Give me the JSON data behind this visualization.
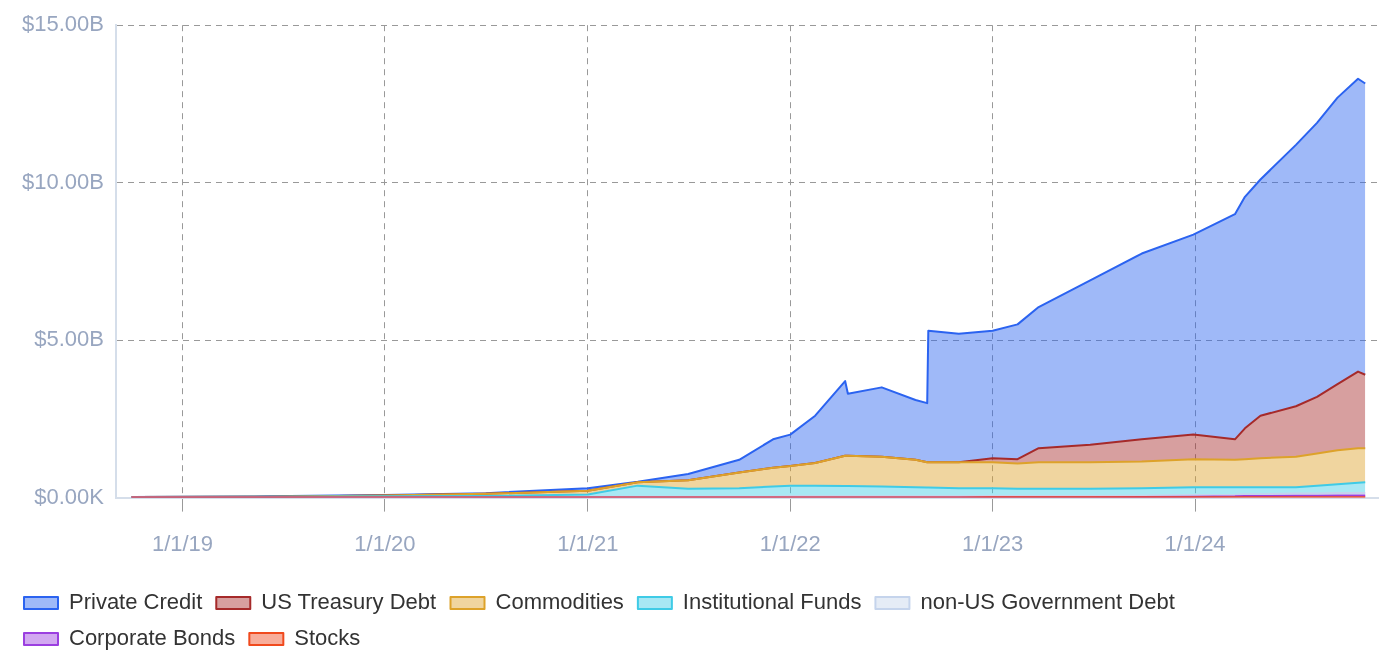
{
  "chart_data": {
    "type": "area",
    "stacked": true,
    "legend": "bottom left",
    "grid": true,
    "x": [
      "2018-10-01",
      "2019-06-01",
      "2020-01-01",
      "2020-07-01",
      "2021-01-01",
      "2021-04-01",
      "2021-07-01",
      "2021-10-01",
      "2021-12-01",
      "2022-01-01",
      "2022-02-15",
      "2022-04-10",
      "2022-04-15",
      "2022-06-15",
      "2022-08-15",
      "2022-09-05",
      "2022-09-07",
      "2022-11-01",
      "2023-01-01",
      "2023-02-15",
      "2023-03-25",
      "2023-06-26",
      "2023-09-27",
      "2023-12-29",
      "2024-03-13",
      "2024-03-31",
      "2024-04-28",
      "2024-07-01",
      "2024-08-08",
      "2024-09-14",
      "2024-10-21",
      "2024-11-03"
    ],
    "xlim": [
      "2018-09-03",
      "2024-11-26"
    ],
    "xticks": [
      {
        "value": "2019-01-01",
        "label": "1/1/19"
      },
      {
        "value": "2020-01-01",
        "label": "1/1/20"
      },
      {
        "value": "2021-01-01",
        "label": "1/1/21"
      },
      {
        "value": "2022-01-01",
        "label": "1/1/22"
      },
      {
        "value": "2023-01-01",
        "label": "1/1/23"
      },
      {
        "value": "2024-01-01",
        "label": "1/1/24"
      }
    ],
    "ylim": [
      0,
      15
    ],
    "yticks": [
      {
        "value": 0,
        "label": "$0.00K"
      },
      {
        "value": 5,
        "label": "$5.00B"
      },
      {
        "value": 10,
        "label": "$10.00B"
      },
      {
        "value": 15,
        "label": "$15.00B"
      }
    ],
    "series": [
      {
        "name": "Stocks",
        "color": "#f04a1e",
        "values": [
          0,
          0,
          0,
          0,
          0,
          0,
          0,
          0,
          0,
          0,
          0,
          0,
          0,
          0,
          0,
          0,
          0,
          0,
          0.01,
          0.01,
          0.01,
          0.01,
          0.01,
          0.01,
          0.01,
          0.01,
          0.01,
          0.01,
          0.01,
          0.01,
          0.01,
          0.01
        ]
      },
      {
        "name": "Corporate Bonds",
        "color": "#9b3fe0",
        "values": [
          0,
          0,
          0,
          0,
          0,
          0,
          0,
          0,
          0,
          0,
          0,
          0,
          0,
          0,
          0,
          0,
          0,
          0,
          0,
          0,
          0,
          0,
          0.01,
          0.02,
          0.03,
          0.04,
          0.04,
          0.05,
          0.05,
          0.06,
          0.06,
          0.06
        ]
      },
      {
        "name": "non-US Government Debt",
        "color": "#c5d4ec",
        "values": [
          0,
          0,
          0,
          0,
          0.02,
          0.03,
          0.03,
          0.03,
          0.03,
          0.04,
          0.04,
          0.04,
          0.04,
          0.04,
          0.04,
          0.04,
          0.04,
          0.04,
          0.04,
          0.04,
          0.04,
          0.04,
          0.04,
          0.05,
          0.05,
          0.06,
          0.06,
          0.07,
          0.07,
          0.08,
          0.08,
          0.08
        ]
      },
      {
        "name": "Institutional Funds",
        "color": "#3fcbe6",
        "values": [
          0.02,
          0.03,
          0.04,
          0.05,
          0.08,
          0.35,
          0.25,
          0.27,
          0.32,
          0.34,
          0.34,
          0.33,
          0.33,
          0.31,
          0.29,
          0.28,
          0.28,
          0.26,
          0.25,
          0.23,
          0.23,
          0.23,
          0.24,
          0.25,
          0.24,
          0.22,
          0.22,
          0.2,
          0.25,
          0.27,
          0.32,
          0.34
        ]
      },
      {
        "name": "Commodities",
        "color": "#dda22a",
        "values": [
          0,
          0,
          0.03,
          0.07,
          0.12,
          0.11,
          0.27,
          0.5,
          0.6,
          0.62,
          0.72,
          0.96,
          0.96,
          0.95,
          0.87,
          0.8,
          0.8,
          0.82,
          0.82,
          0.8,
          0.84,
          0.84,
          0.85,
          0.89,
          0.87,
          0.89,
          0.92,
          0.97,
          1.02,
          1.08,
          1.1,
          1.08
        ]
      },
      {
        "name": "US Treasury Debt",
        "color": "#a62a2a",
        "values": [
          0,
          0,
          0,
          0,
          0,
          0,
          0,
          0,
          0,
          0,
          0,
          0,
          0,
          0,
          0,
          0,
          0,
          0,
          0.13,
          0.14,
          0.45,
          0.56,
          0.7,
          0.78,
          0.65,
          0.98,
          1.35,
          1.6,
          1.8,
          2.1,
          2.43,
          2.33
        ]
      },
      {
        "name": "Private Credit",
        "color": "#2b63f0",
        "values": [
          0,
          0.01,
          0.01,
          0.02,
          0.08,
          0.01,
          0.2,
          0.4,
          0.9,
          1.0,
          1.5,
          2.37,
          1.97,
          2.2,
          1.9,
          1.88,
          4.18,
          4.08,
          4.05,
          4.28,
          4.48,
          5.22,
          5.9,
          6.35,
          7.15,
          7.35,
          7.5,
          8.3,
          8.7,
          9.1,
          9.3,
          9.25
        ]
      }
    ]
  }
}
